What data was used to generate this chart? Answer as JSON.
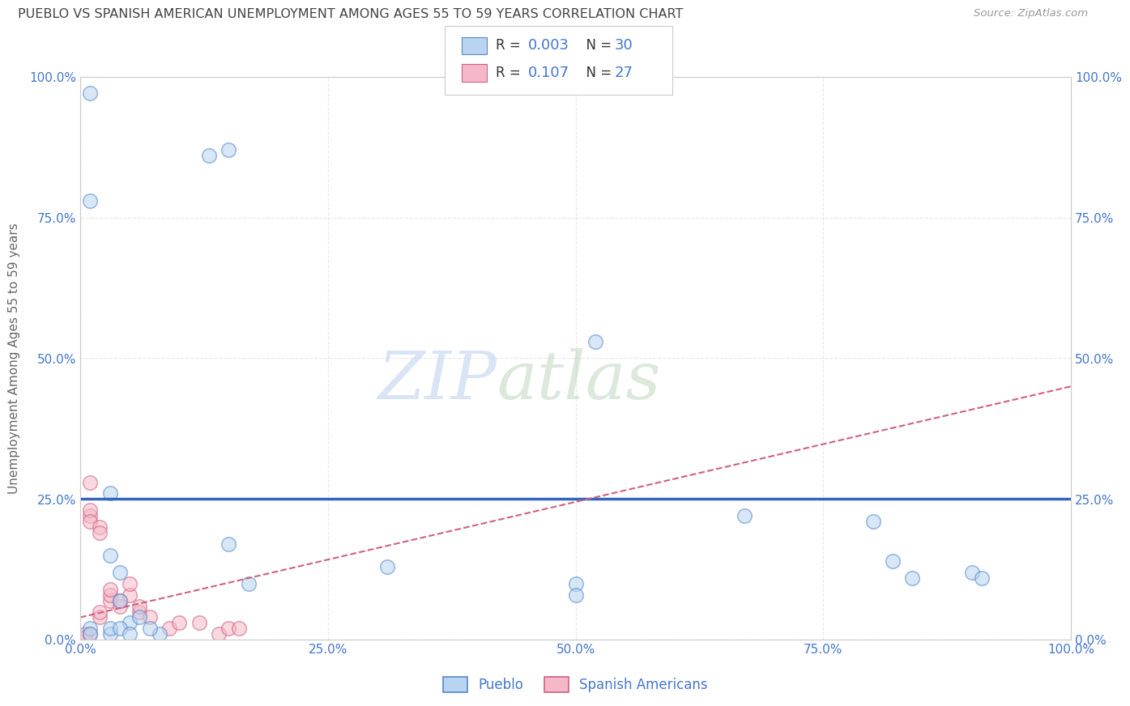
{
  "title": "PUEBLO VS SPANISH AMERICAN UNEMPLOYMENT AMONG AGES 55 TO 59 YEARS CORRELATION CHART",
  "source": "Source: ZipAtlas.com",
  "ylabel": "Unemployment Among Ages 55 to 59 years",
  "pueblo_R": "0.003",
  "pueblo_N": "30",
  "sa_R": "0.107",
  "sa_N": "27",
  "pueblo_color": "#b8d4f0",
  "pueblo_edge_color": "#5588cc",
  "pueblo_line_color": "#3366bb",
  "sa_color": "#f5b8c8",
  "sa_edge_color": "#d06080",
  "sa_line_color": "#d06080",
  "pueblo_scatter_x": [
    0.01,
    0.13,
    0.15,
    0.01,
    0.03,
    0.03,
    0.04,
    0.04,
    0.05,
    0.06,
    0.08,
    0.15,
    0.17,
    0.31,
    0.5,
    0.5,
    0.52,
    0.67,
    0.8,
    0.82,
    0.84,
    0.9,
    0.91,
    0.01,
    0.01,
    0.03,
    0.03,
    0.04,
    0.05,
    0.07
  ],
  "pueblo_scatter_y": [
    0.97,
    0.86,
    0.87,
    0.78,
    0.26,
    0.15,
    0.12,
    0.07,
    0.03,
    0.04,
    0.01,
    0.17,
    0.1,
    0.13,
    0.1,
    0.08,
    0.53,
    0.22,
    0.21,
    0.14,
    0.11,
    0.12,
    0.11,
    0.02,
    0.01,
    0.01,
    0.02,
    0.02,
    0.01,
    0.02
  ],
  "sa_scatter_x": [
    0.005,
    0.005,
    0.01,
    0.01,
    0.01,
    0.01,
    0.01,
    0.02,
    0.02,
    0.02,
    0.02,
    0.03,
    0.03,
    0.03,
    0.04,
    0.04,
    0.05,
    0.05,
    0.06,
    0.06,
    0.07,
    0.09,
    0.1,
    0.12,
    0.14,
    0.15,
    0.16
  ],
  "sa_scatter_y": [
    0.005,
    0.01,
    0.22,
    0.28,
    0.23,
    0.21,
    0.01,
    0.2,
    0.19,
    0.04,
    0.05,
    0.07,
    0.08,
    0.09,
    0.06,
    0.07,
    0.08,
    0.1,
    0.05,
    0.06,
    0.04,
    0.02,
    0.03,
    0.03,
    0.01,
    0.02,
    0.02
  ],
  "pueblo_hline_y": 0.25,
  "sa_trendline_x0": 0.0,
  "sa_trendline_y0": 0.04,
  "sa_trendline_x1": 1.0,
  "sa_trendline_y1": 0.45,
  "xlim": [
    0.0,
    1.0
  ],
  "ylim": [
    0.0,
    1.0
  ],
  "xticks": [
    0.0,
    0.25,
    0.5,
    0.75,
    1.0
  ],
  "yticks": [
    0.0,
    0.25,
    0.5,
    0.75,
    1.0
  ],
  "xticklabels": [
    "0.0%",
    "25.0%",
    "50.0%",
    "75.0%",
    "100.0%"
  ],
  "yticklabels": [
    "0.0%",
    "25.0%",
    "50.0%",
    "75.0%",
    "100.0%"
  ],
  "right_yticklabels": [
    "0.0%",
    "25.0%",
    "50.0%",
    "75.0%",
    "100.0%"
  ],
  "right_yticks": [
    0.0,
    0.25,
    0.5,
    0.75,
    1.0
  ],
  "marker_size": 160,
  "scatter_alpha": 0.55,
  "watermark_zip": "ZIP",
  "watermark_atlas": "atlas",
  "background_color": "#ffffff",
  "grid_color": "#e8e8e8",
  "title_color": "#444444",
  "axis_label_color": "#666666",
  "tick_color": "#4477cc",
  "legend_label1": "Pueblo",
  "legend_label2": "Spanish Americans"
}
